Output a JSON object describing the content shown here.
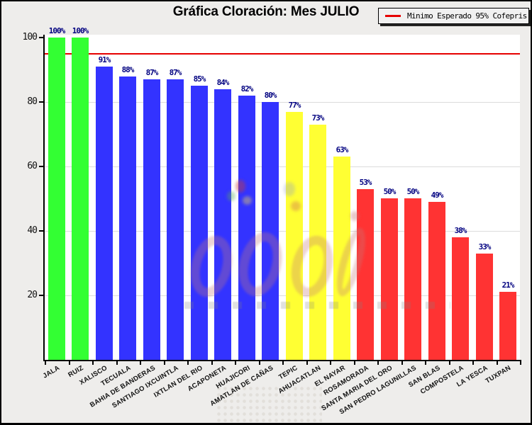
{
  "title": "Gráfica Cloración: Mes JULIO",
  "legend": {
    "label": "Minimo Esperado 95% Cofepris",
    "line_color": "#e60000"
  },
  "axes": {
    "y_ticks": [
      100,
      80,
      60,
      40,
      20
    ],
    "grid_levels": [
      20,
      40,
      60,
      80
    ]
  },
  "palette": {
    "green": "#33ff33",
    "blue": "#3333ff",
    "yellow": "#ffff33",
    "red": "#ff3333",
    "threshold": "#e60000",
    "value_label": "#000080",
    "plot_bg": "#ffffff",
    "window_bg": "#eeedeb",
    "grid": "#dcdcdc"
  },
  "chart_data": {
    "type": "bar",
    "title": "Gráfica Cloración: Mes JULIO",
    "categories": [
      "JALA",
      "RUIZ",
      "XALISCO",
      "TECUALA",
      "BAHIA DE BANDERAS",
      "SANTIAGO IXCUINTLA",
      "IXTLAN DEL RIO",
      "ACAPONETA",
      "HUAJICORI",
      "AMATLAN DE CAÑAS",
      "TEPIC",
      "AHUACATLAN",
      "EL NAYAR",
      "ROSAMORADA",
      "SANTA MARIA DEL ORO",
      "SAN PEDRO LAGUNILLAS",
      "SAN BLAS",
      "COMPOSTELA",
      "LA YESCA",
      "TUXPAN"
    ],
    "values": [
      100,
      100,
      91,
      88,
      87,
      87,
      85,
      84,
      82,
      80,
      77,
      73,
      63,
      53,
      50,
      50,
      49,
      38,
      33,
      21
    ],
    "value_labels": [
      "100%",
      "100%",
      "91%",
      "88%",
      "87%",
      "87%",
      "85%",
      "84%",
      "82%",
      "80%",
      "77%",
      "73%",
      "63%",
      "53%",
      "50%",
      "50%",
      "49%",
      "38%",
      "33%",
      "21%"
    ],
    "bar_colors": [
      "#33ff33",
      "#33ff33",
      "#3333ff",
      "#3333ff",
      "#3333ff",
      "#3333ff",
      "#3333ff",
      "#3333ff",
      "#3333ff",
      "#3333ff",
      "#ffff33",
      "#ffff33",
      "#ffff33",
      "#ff3333",
      "#ff3333",
      "#ff3333",
      "#ff3333",
      "#ff3333",
      "#ff3333",
      "#ff3333"
    ],
    "xlabel": "",
    "ylabel": "",
    "ylim": [
      0,
      100
    ],
    "grid": "horizontal",
    "legend_position": "top-right",
    "legend_entries": [
      {
        "label": "Minimo Esperado 95% Cofepris",
        "type": "line",
        "color": "#e60000"
      }
    ],
    "threshold_line": {
      "value": 95,
      "color": "#e60000"
    }
  }
}
